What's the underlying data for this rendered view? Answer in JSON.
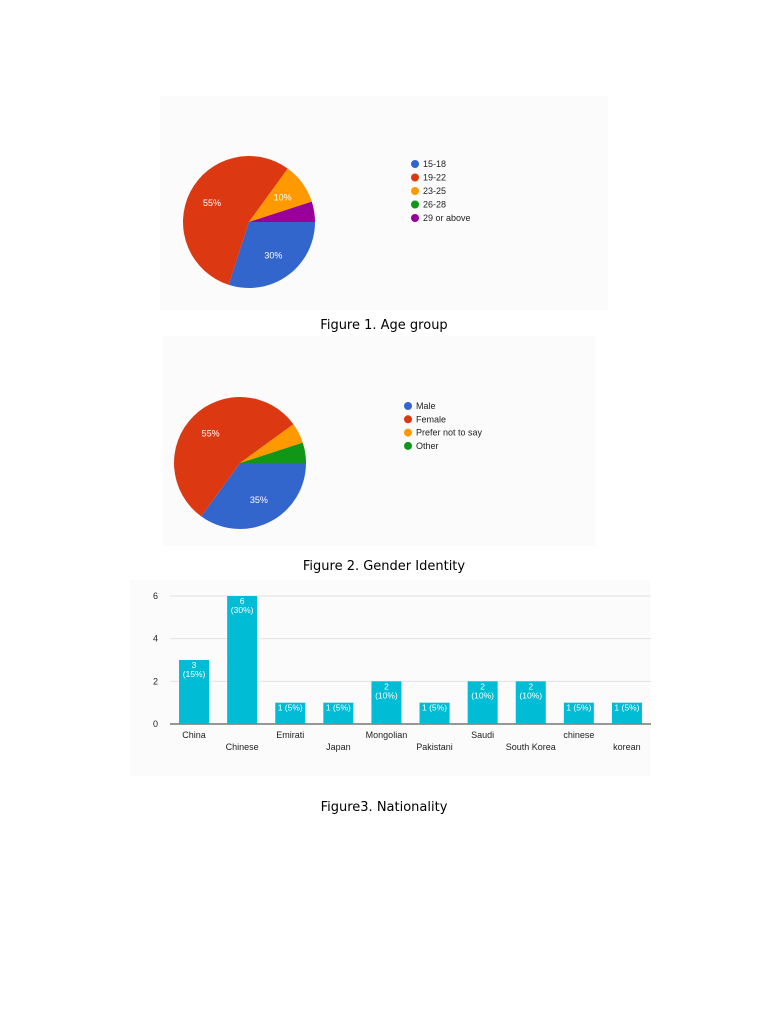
{
  "captions": {
    "fig1": "Figure 1. Age group",
    "fig2": "Figure 2. Gender Identity",
    "fig3": "Figure3. Nationality"
  },
  "chart_data": [
    {
      "type": "pie",
      "categories": [
        "15-18",
        "19-22",
        "23-25",
        "26-28",
        "29 or above"
      ],
      "values": [
        30,
        55,
        10,
        0,
        5
      ],
      "colors": [
        "#3366cc",
        "#dc3912",
        "#ff9900",
        "#109618",
        "#990099"
      ],
      "slice_labels": [
        "30%",
        "55%",
        "10%",
        "",
        ""
      ],
      "legend_placement": "right"
    },
    {
      "type": "pie",
      "categories": [
        "Male",
        "Female",
        "Prefer not to say",
        "Other"
      ],
      "values": [
        35,
        55,
        5,
        5
      ],
      "colors": [
        "#3366cc",
        "#dc3912",
        "#ff9900",
        "#109618"
      ],
      "slice_labels": [
        "35%",
        "55%",
        "",
        ""
      ],
      "legend_placement": "right"
    },
    {
      "type": "bar",
      "categories": [
        "China",
        "Chinese",
        "Emirati",
        "Japan",
        "Mongolian",
        "Pakistani",
        "Saudi",
        "South Korea",
        "chinese",
        "korean"
      ],
      "values": [
        3,
        6,
        1,
        1,
        2,
        1,
        2,
        2,
        1,
        1
      ],
      "data_labels": [
        [
          "3",
          "(15%)"
        ],
        [
          "6",
          "(30%)"
        ],
        [
          "1 (5%)"
        ],
        [
          "1 (5%)"
        ],
        [
          "2",
          "(10%)"
        ],
        [
          "1 (5%)"
        ],
        [
          "2",
          "(10%)"
        ],
        [
          "2",
          "(10%)"
        ],
        [
          "1 (5%)"
        ],
        [
          "1 (5%)"
        ]
      ],
      "yticks": [
        "0",
        "2",
        "4",
        "6"
      ],
      "ylim": [
        0,
        6
      ],
      "color": "#00bcd4",
      "grid": true
    }
  ]
}
